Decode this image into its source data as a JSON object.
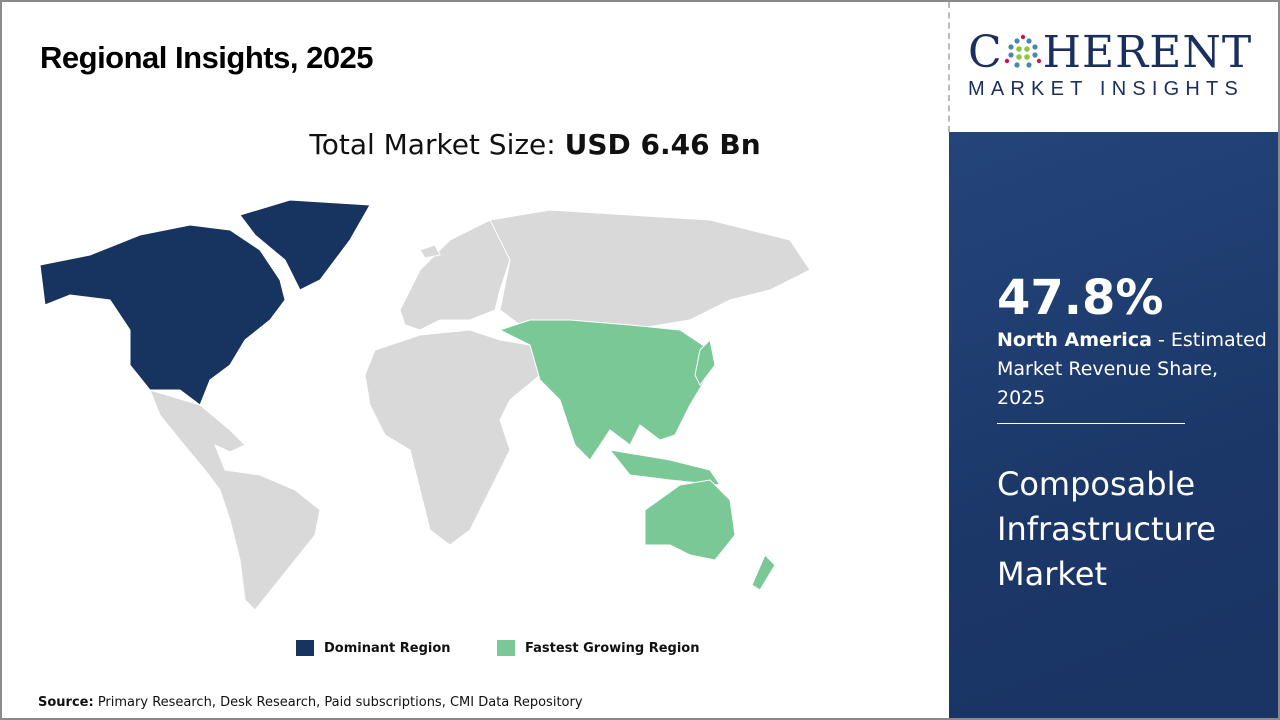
{
  "header": {
    "title": "Regional Insights, 2025",
    "total_label": "Total Market Size:",
    "total_value": "USD 6.46 Bn"
  },
  "logo": {
    "name": "COHERENT",
    "tagline": "MARKET INSIGHTS"
  },
  "panel": {
    "share": "47.8%",
    "region": "North America",
    "description": " - Estimated Market Revenue Share, 2025",
    "market": "Composable Infrastructure Market"
  },
  "legend": [
    {
      "label": "Dominant Region",
      "color": "#17335f"
    },
    {
      "label": "Fastest Growing Region",
      "color": "#7ac896"
    }
  ],
  "map": {
    "dominant_region": "North America",
    "fastest_growing_region": "Asia Pacific",
    "other_color": "#d9d9d9"
  },
  "source": {
    "label": "Source:",
    "text": " Primary Research, Desk Research, Paid subscriptions, CMI Data Repository"
  }
}
